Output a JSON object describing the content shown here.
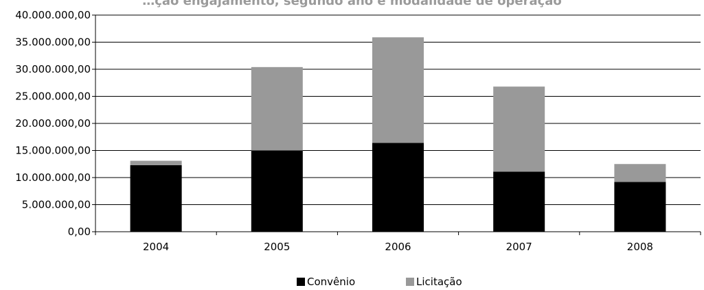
{
  "chart_data": {
    "type": "bar",
    "stacked": true,
    "title": "…ção engajamento, segundo ano e modalidade de operação",
    "categories": [
      "2004",
      "2005",
      "2006",
      "2007",
      "2008"
    ],
    "series": [
      {
        "name": "Convênio",
        "color": "#000000",
        "values": [
          12300000,
          15000000,
          16400000,
          11100000,
          9200000
        ]
      },
      {
        "name": "Licitação",
        "color": "#999999",
        "values": [
          800000,
          15400000,
          19500000,
          15700000,
          3300000
        ]
      }
    ],
    "ylim": [
      0,
      40000000
    ],
    "yticks": [
      "0,00",
      "5.000.000,00",
      "10.000.000,00",
      "15.000.000,00",
      "20.000.000,00",
      "25.000.000,00",
      "30.000.000,00",
      "35.000.000,00",
      "40.000.000,00"
    ],
    "grid": true,
    "legend_position": "bottom"
  }
}
